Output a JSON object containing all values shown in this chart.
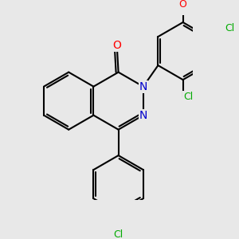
{
  "background_color": "#e8e8e8",
  "bond_color": "#000000",
  "bond_width": 1.5,
  "dbo": 0.035,
  "atom_colors": {
    "N": "#0000cc",
    "O": "#ff0000",
    "Cl": "#00aa00"
  },
  "u": 0.42
}
